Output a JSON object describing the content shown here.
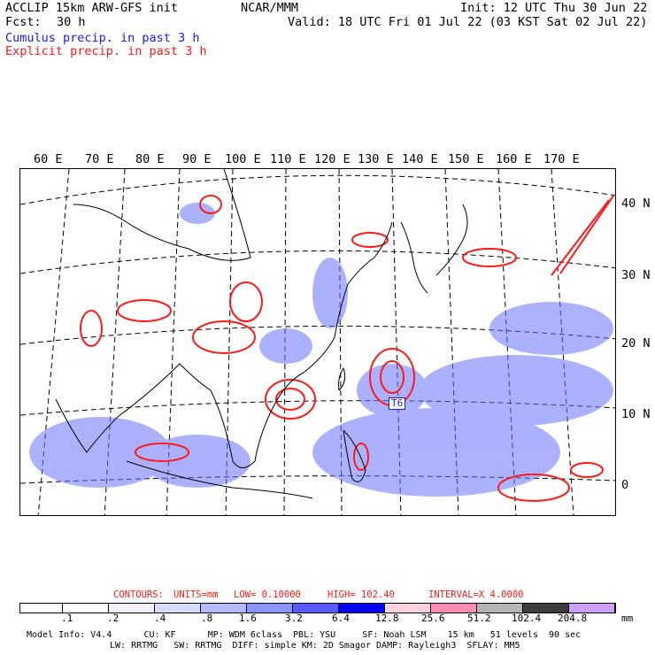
{
  "header": {
    "model_line": "ACCLIP 15km ARW-GFS init",
    "fcst_label": "Fcst:",
    "fcst_value": "30 h",
    "center": "NCAR/MMM",
    "init": "Init: 12 UTC Thu 30 Jun 22",
    "valid": "Valid: 18 UTC Fri 01 Jul 22 (03 KST Sat 02 Jul 22)",
    "cumulus_label": "Cumulus precip. in past 3 h",
    "explicit_label": "Explicit precip. in past 3 h"
  },
  "map": {
    "lon_labels": [
      "60 E",
      "70 E",
      "80 E",
      "90 E",
      "100 E",
      "110 E",
      "120 E",
      "130 E",
      "140 E",
      "150 E",
      "160 E",
      "170 E"
    ],
    "lat_labels": [
      "40 N",
      "30 N",
      "20 N",
      "10 N",
      "0"
    ],
    "storm_label": "T6",
    "colors": {
      "cumulus": "#1a1aff",
      "explicit": "#ff1a1a",
      "coast": "#000000"
    }
  },
  "legend": {
    "contours_label": "CONTOURS:",
    "units": "UNITS=mm",
    "low": "LOW= 0.10000",
    "high": "HIGH= 102.40",
    "interval": "INTERVAL=X 4.0000",
    "ticks": [
      ".1",
      ".2",
      ".4",
      ".8",
      "1.6",
      "3.2",
      "6.4",
      "12.8",
      "25.6",
      "51.2",
      "102.4",
      "204.8"
    ],
    "unit_label": "mm",
    "swatch_colors": [
      "#ffffff",
      "#ffffff",
      "#f0f0ff",
      "#d7dcff",
      "#b4bcff",
      "#8c96ff",
      "#5a5aff",
      "#0000ee",
      "#ffd2dc",
      "#ff8cb4",
      "#b4b4b4",
      "#3c3c3c",
      "#cda0ff"
    ]
  },
  "footer": {
    "line1": "Model Info: V4.4      CU: KF      MP: WDM 6class  PBL: YSU     SF: Noah LSM    15 km   51 levels  90 sec",
    "line2": "LW: RRTMG   SW: RRTMG  DIFF: simple KM: 2D Smagor DAMP: Rayleigh3  SFLAY: MM5"
  }
}
